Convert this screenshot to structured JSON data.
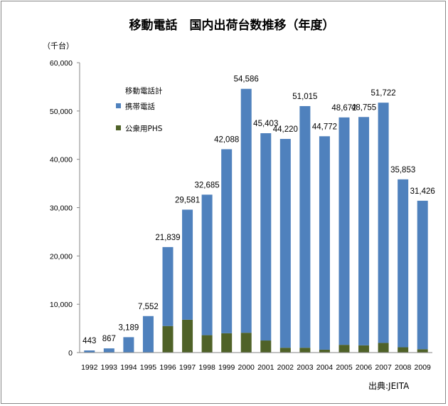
{
  "chart_data": {
    "type": "bar",
    "stacked": true,
    "title": "移動電話　国内出荷台数推移（年度）",
    "unit_label": "（千台）",
    "source": "出典:JEITA",
    "legend_title": "移動電話計",
    "legend_position": "top-left",
    "categories": [
      "1992",
      "1993",
      "1994",
      "1995",
      "1996",
      "1997",
      "1998",
      "1999",
      "2000",
      "2001",
      "2002",
      "2003",
      "2004",
      "2005",
      "2006",
      "2007",
      "2008",
      "2009"
    ],
    "totals": [
      443,
      867,
      3189,
      7552,
      21839,
      29581,
      32685,
      42088,
      54586,
      45403,
      44220,
      51015,
      44772,
      48672,
      48755,
      51722,
      35853,
      31426
    ],
    "total_labels": [
      "443",
      "867",
      "3,189",
      "7,552",
      "21,839",
      "29,581",
      "32,685",
      "42,088",
      "54,586",
      "45,403",
      "44,220",
      "51,015",
      "44,772",
      "48,672",
      "48,755",
      "51,722",
      "35,853",
      "31,426"
    ],
    "series": [
      {
        "name": "公衆用PHS",
        "color": "#4f6228",
        "values": [
          0,
          0,
          0,
          0,
          5500,
          6800,
          3600,
          4000,
          4100,
          2500,
          1000,
          1000,
          600,
          1600,
          1500,
          2000,
          1100,
          700
        ]
      },
      {
        "name": "携帯電話",
        "color": "#4f81bd",
        "values": [
          443,
          867,
          3189,
          7552,
          16339,
          22781,
          29085,
          38088,
          50486,
          42903,
          43220,
          50015,
          44172,
          47072,
          47255,
          49722,
          34753,
          30726
        ]
      }
    ],
    "ylim": [
      0,
      60000
    ],
    "yticks": [
      0,
      10000,
      20000,
      30000,
      40000,
      50000,
      60000
    ],
    "ytick_labels": [
      "0",
      "10,000",
      "20,000",
      "30,000",
      "40,000",
      "50,000",
      "60,000"
    ],
    "grid": false
  }
}
